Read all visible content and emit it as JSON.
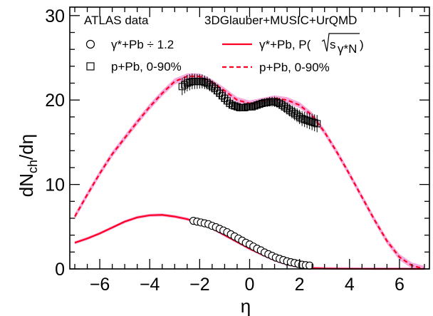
{
  "chart_data": {
    "type": "line",
    "xlabel": "η",
    "ylabel": "dN",
    "ylabel_sub": "ch",
    "ylabel_tail": "/dη",
    "xlim": [
      -7.2,
      7.2
    ],
    "ylim": [
      0,
      31
    ],
    "x_ticks": [
      -6,
      -4,
      -2,
      0,
      2,
      4,
      6
    ],
    "x_tick_labels": [
      "−6",
      "−4",
      "−2",
      "0",
      "2",
      "4",
      "6"
    ],
    "y_ticks": [
      0,
      10,
      20,
      30
    ],
    "y_tick_labels": [
      "0",
      "10",
      "20",
      "30"
    ],
    "legend_left": {
      "header": "ATLAS data",
      "entries": [
        {
          "label": "γ*+Pb ÷ 1.2",
          "marker": "circle"
        },
        {
          "label": "p+Pb, 0-90%",
          "marker": "square"
        }
      ]
    },
    "legend_right": {
      "header": "3DGlauber+MUSIC+UrQMD",
      "entries": [
        {
          "label": "γ*+Pb, P(",
          "label_sqrt": "s",
          "label_sub": "γ*N",
          "label_close": ")",
          "line": "solid"
        },
        {
          "label": "p+Pb, 0-90%",
          "line": "dashed"
        }
      ]
    },
    "colors": {
      "model_line": "#ff0022",
      "model_band": "#f4a0d8",
      "markers": "#000000"
    },
    "series": [
      {
        "key": "model_pPb",
        "style": "dashed",
        "x": [
          -7.0,
          -6.5,
          -6.0,
          -5.5,
          -5.0,
          -4.5,
          -4.0,
          -3.5,
          -3.0,
          -2.5,
          -2.0,
          -1.5,
          -1.0,
          -0.5,
          0.0,
          0.5,
          1.0,
          1.5,
          2.0,
          2.5,
          3.0,
          3.5,
          4.0,
          4.5,
          5.0,
          5.5,
          6.0,
          6.5,
          7.0
        ],
        "y": [
          6.2,
          8.8,
          11.3,
          13.6,
          15.5,
          17.4,
          19.2,
          20.8,
          22.2,
          22.8,
          22.8,
          22.1,
          21.1,
          20.0,
          19.6,
          19.9,
          20.2,
          20.0,
          19.4,
          18.2,
          16.2,
          13.8,
          11.2,
          8.5,
          5.8,
          3.3,
          1.4,
          0.4,
          0.0
        ]
      },
      {
        "key": "model_gPb",
        "style": "solid",
        "x": [
          -7.0,
          -6.5,
          -6.0,
          -5.5,
          -5.0,
          -4.5,
          -4.0,
          -3.5,
          -3.0,
          -2.5,
          -2.0,
          -1.5,
          -1.0,
          -0.5,
          0.0,
          0.5,
          1.0,
          1.5,
          2.0,
          2.5,
          3.0,
          3.5,
          4.0,
          5.0,
          6.0,
          7.0
        ],
        "y": [
          3.1,
          3.6,
          4.2,
          4.9,
          5.6,
          6.1,
          6.35,
          6.4,
          6.2,
          5.9,
          5.4,
          4.8,
          4.0,
          3.2,
          2.4,
          1.7,
          1.05,
          0.55,
          0.25,
          0.1,
          0.04,
          0.02,
          0.01,
          0.0,
          0.0,
          0.0
        ]
      },
      {
        "key": "atlas_gPb",
        "marker": "circle",
        "x": [
          -2.25,
          -2.1,
          -1.95,
          -1.8,
          -1.65,
          -1.5,
          -1.35,
          -1.2,
          -1.05,
          -0.9,
          -0.75,
          -0.6,
          -0.45,
          -0.3,
          -0.15,
          0.0,
          0.15,
          0.3,
          0.45,
          0.6,
          0.75,
          0.9,
          1.05,
          1.2,
          1.35,
          1.5,
          1.65,
          1.8,
          1.95,
          2.1,
          2.25,
          2.4
        ],
        "y": [
          5.7,
          5.6,
          5.5,
          5.4,
          5.3,
          5.1,
          4.95,
          4.75,
          4.55,
          4.35,
          4.1,
          3.85,
          3.6,
          3.35,
          3.1,
          2.9,
          2.65,
          2.4,
          2.2,
          1.95,
          1.75,
          1.55,
          1.35,
          1.2,
          1.05,
          0.9,
          0.8,
          0.7,
          0.6,
          0.5,
          0.45,
          0.4
        ]
      },
      {
        "key": "atlas_pPb",
        "marker": "square",
        "x": [
          -2.7,
          -2.6,
          -2.5,
          -2.4,
          -2.3,
          -2.2,
          -2.1,
          -2.0,
          -1.9,
          -1.8,
          -1.7,
          -1.6,
          -1.5,
          -1.4,
          -1.3,
          -1.2,
          -1.1,
          -1.0,
          -0.9,
          -0.8,
          -0.7,
          -0.6,
          -0.5,
          -0.4,
          -0.3,
          -0.2,
          -0.1,
          0.0,
          0.1,
          0.2,
          0.3,
          0.4,
          0.5,
          0.6,
          0.7,
          0.8,
          0.9,
          1.0,
          1.1,
          1.2,
          1.3,
          1.4,
          1.5,
          1.6,
          1.7,
          1.8,
          1.9,
          2.0,
          2.1,
          2.2,
          2.3,
          2.4,
          2.5,
          2.6,
          2.7
        ],
        "y": [
          21.6,
          21.8,
          22.0,
          22.1,
          22.2,
          22.2,
          22.2,
          22.2,
          22.2,
          22.1,
          22.0,
          21.8,
          21.6,
          21.4,
          21.1,
          20.8,
          20.5,
          20.2,
          19.9,
          19.6,
          19.4,
          19.3,
          19.2,
          19.1,
          19.1,
          19.1,
          19.2,
          19.2,
          19.2,
          19.3,
          19.4,
          19.5,
          19.6,
          19.7,
          19.7,
          19.8,
          19.8,
          19.8,
          19.7,
          19.6,
          19.4,
          19.2,
          19.0,
          18.8,
          18.6,
          18.4,
          18.2,
          18.0,
          17.8,
          17.7,
          17.6,
          17.5,
          17.4,
          17.3,
          17.2
        ]
      }
    ]
  }
}
